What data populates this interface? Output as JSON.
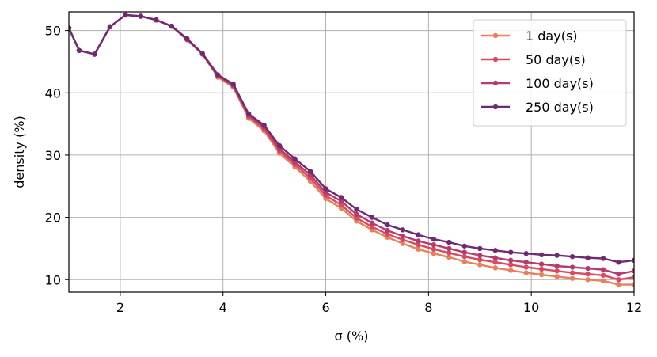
{
  "chart_data": {
    "type": "line",
    "xlabel": "σ (%)",
    "ylabel": "density (%)",
    "xlim": [
      1,
      12
    ],
    "ylim": [
      8,
      53
    ],
    "xticks": [
      2,
      4,
      6,
      8,
      10,
      12
    ],
    "yticks": [
      10,
      20,
      30,
      40,
      50
    ],
    "grid": true,
    "legend_position": "top-right",
    "x": [
      1.0,
      1.2,
      1.5,
      1.8,
      2.1,
      2.4,
      2.7,
      3.0,
      3.3,
      3.6,
      3.9,
      4.2,
      4.5,
      4.8,
      5.1,
      5.4,
      5.7,
      6.0,
      6.3,
      6.6,
      6.9,
      7.2,
      7.5,
      7.8,
      8.1,
      8.4,
      8.7,
      9.0,
      9.3,
      9.6,
      9.9,
      10.2,
      10.5,
      10.8,
      11.1,
      11.4,
      11.7,
      12.0
    ],
    "series": [
      {
        "name": "1 day(s)",
        "color": "#e8805a",
        "values": [
          50.4,
          46.8,
          46.2,
          50.6,
          52.5,
          52.3,
          51.7,
          50.7,
          48.5,
          46.2,
          42.5,
          40.9,
          35.9,
          33.9,
          30.3,
          28.1,
          25.8,
          23.0,
          21.5,
          19.4,
          18.0,
          16.8,
          15.8,
          14.9,
          14.2,
          13.6,
          12.9,
          12.4,
          11.9,
          11.5,
          11.1,
          10.8,
          10.5,
          10.2,
          10.0,
          9.8,
          9.2,
          9.2
        ]
      },
      {
        "name": "50 day(s)",
        "color": "#d94a5e",
        "values": [
          50.4,
          46.8,
          46.2,
          50.6,
          52.5,
          52.3,
          51.7,
          50.7,
          48.6,
          46.2,
          42.7,
          41.1,
          36.2,
          34.2,
          30.7,
          28.5,
          26.3,
          23.5,
          22.0,
          19.9,
          18.5,
          17.3,
          16.4,
          15.6,
          14.9,
          14.3,
          13.7,
          13.2,
          12.8,
          12.4,
          12.0,
          11.7,
          11.4,
          11.1,
          10.9,
          10.7,
          10.0,
          10.4
        ]
      },
      {
        "name": "100 day(s)",
        "color": "#b53b6e",
        "values": [
          50.4,
          46.8,
          46.2,
          50.6,
          52.5,
          52.3,
          51.7,
          50.7,
          48.6,
          46.3,
          42.8,
          41.2,
          36.4,
          34.5,
          31.0,
          28.9,
          26.8,
          24.0,
          22.6,
          20.5,
          19.1,
          17.9,
          17.0,
          16.2,
          15.6,
          15.0,
          14.4,
          13.9,
          13.5,
          13.1,
          12.8,
          12.5,
          12.2,
          12.0,
          11.8,
          11.6,
          10.9,
          11.4
        ]
      },
      {
        "name": "250 day(s)",
        "color": "#6e2b73",
        "values": [
          50.4,
          46.8,
          46.2,
          50.6,
          52.5,
          52.3,
          51.7,
          50.7,
          48.7,
          46.3,
          42.9,
          41.4,
          36.6,
          34.8,
          31.5,
          29.4,
          27.4,
          24.6,
          23.2,
          21.3,
          20.0,
          18.8,
          18.0,
          17.2,
          16.5,
          16.0,
          15.4,
          15.0,
          14.7,
          14.4,
          14.2,
          14.0,
          13.9,
          13.7,
          13.5,
          13.4,
          12.8,
          13.1
        ]
      }
    ]
  }
}
